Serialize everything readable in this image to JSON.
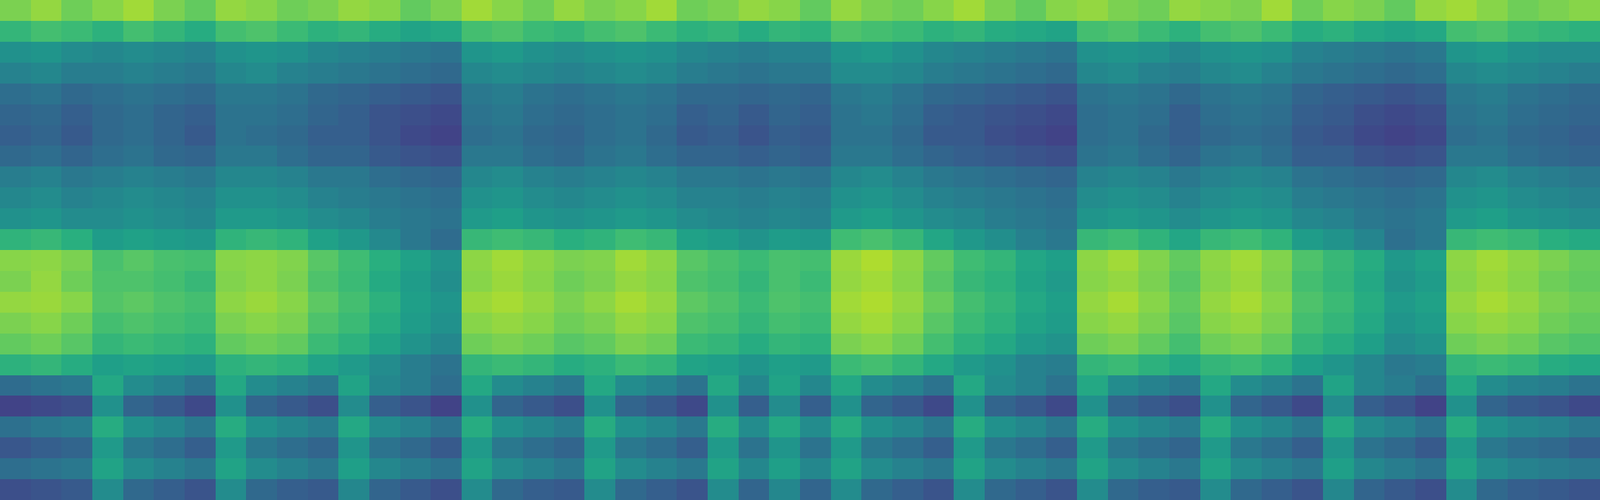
{
  "chart_data": {
    "type": "heatmap",
    "color": "Viridis",
    "tick_labels": false,
    "zlim": [
      0,
      1
    ],
    "cells": [
      [
        0.8,
        0.84,
        0.78,
        0.82,
        0.86,
        0.8,
        0.76,
        0.84,
        0.82,
        0.78,
        0.8,
        0.84,
        0.82,
        0.76,
        0.8,
        0.86,
        0.82,
        0.78,
        0.84,
        0.8,
        0.82,
        0.86,
        0.78,
        0.8,
        0.84,
        0.82,
        0.76,
        0.84,
        0.8,
        0.78,
        0.82,
        0.86,
        0.8,
        0.76,
        0.82,
        0.84,
        0.8,
        0.78,
        0.84,
        0.82,
        0.8,
        0.86,
        0.78,
        0.82,
        0.8,
        0.76,
        0.84,
        0.86,
        0.82,
        0.78,
        0.8,
        0.82
      ],
      [
        0.66,
        0.7,
        0.68,
        0.64,
        0.7,
        0.66,
        0.62,
        0.7,
        0.72,
        0.68,
        0.64,
        0.66,
        0.62,
        0.58,
        0.6,
        0.7,
        0.72,
        0.68,
        0.66,
        0.7,
        0.72,
        0.68,
        0.64,
        0.66,
        0.62,
        0.66,
        0.64,
        0.72,
        0.7,
        0.68,
        0.64,
        0.66,
        0.62,
        0.6,
        0.58,
        0.7,
        0.72,
        0.68,
        0.64,
        0.7,
        0.72,
        0.68,
        0.62,
        0.64,
        0.6,
        0.58,
        0.6,
        0.7,
        0.72,
        0.68,
        0.66,
        0.64
      ],
      [
        0.5,
        0.52,
        0.48,
        0.46,
        0.48,
        0.46,
        0.44,
        0.5,
        0.52,
        0.5,
        0.46,
        0.44,
        0.42,
        0.4,
        0.38,
        0.52,
        0.54,
        0.5,
        0.48,
        0.5,
        0.52,
        0.5,
        0.46,
        0.44,
        0.42,
        0.44,
        0.44,
        0.52,
        0.54,
        0.5,
        0.46,
        0.44,
        0.42,
        0.4,
        0.38,
        0.5,
        0.52,
        0.5,
        0.46,
        0.5,
        0.52,
        0.5,
        0.44,
        0.42,
        0.4,
        0.38,
        0.4,
        0.52,
        0.54,
        0.5,
        0.48,
        0.48
      ],
      [
        0.44,
        0.46,
        0.42,
        0.42,
        0.44,
        0.42,
        0.4,
        0.46,
        0.48,
        0.44,
        0.42,
        0.4,
        0.38,
        0.36,
        0.34,
        0.46,
        0.48,
        0.46,
        0.44,
        0.46,
        0.48,
        0.46,
        0.42,
        0.4,
        0.38,
        0.4,
        0.4,
        0.48,
        0.48,
        0.46,
        0.42,
        0.4,
        0.38,
        0.36,
        0.34,
        0.46,
        0.48,
        0.44,
        0.42,
        0.46,
        0.48,
        0.44,
        0.4,
        0.38,
        0.36,
        0.34,
        0.36,
        0.46,
        0.48,
        0.46,
        0.44,
        0.42
      ],
      [
        0.36,
        0.38,
        0.34,
        0.36,
        0.38,
        0.36,
        0.34,
        0.4,
        0.4,
        0.38,
        0.34,
        0.32,
        0.3,
        0.28,
        0.26,
        0.4,
        0.42,
        0.38,
        0.36,
        0.38,
        0.4,
        0.38,
        0.34,
        0.34,
        0.32,
        0.34,
        0.32,
        0.4,
        0.42,
        0.38,
        0.34,
        0.32,
        0.3,
        0.28,
        0.26,
        0.38,
        0.4,
        0.38,
        0.34,
        0.38,
        0.4,
        0.38,
        0.32,
        0.3,
        0.28,
        0.26,
        0.28,
        0.4,
        0.42,
        0.38,
        0.36,
        0.34
      ],
      [
        0.32,
        0.34,
        0.3,
        0.34,
        0.36,
        0.32,
        0.3,
        0.38,
        0.38,
        0.36,
        0.32,
        0.3,
        0.26,
        0.24,
        0.22,
        0.38,
        0.4,
        0.36,
        0.34,
        0.36,
        0.38,
        0.36,
        0.3,
        0.32,
        0.28,
        0.32,
        0.3,
        0.38,
        0.4,
        0.36,
        0.3,
        0.28,
        0.26,
        0.24,
        0.22,
        0.36,
        0.38,
        0.36,
        0.3,
        0.36,
        0.38,
        0.36,
        0.3,
        0.28,
        0.24,
        0.22,
        0.24,
        0.38,
        0.4,
        0.36,
        0.34,
        0.32
      ],
      [
        0.3,
        0.32,
        0.28,
        0.34,
        0.36,
        0.32,
        0.28,
        0.38,
        0.36,
        0.34,
        0.3,
        0.3,
        0.26,
        0.22,
        0.2,
        0.36,
        0.38,
        0.34,
        0.32,
        0.36,
        0.38,
        0.34,
        0.28,
        0.3,
        0.26,
        0.3,
        0.28,
        0.38,
        0.38,
        0.34,
        0.28,
        0.28,
        0.24,
        0.22,
        0.2,
        0.36,
        0.38,
        0.34,
        0.3,
        0.34,
        0.36,
        0.34,
        0.28,
        0.26,
        0.22,
        0.2,
        0.22,
        0.36,
        0.38,
        0.34,
        0.32,
        0.3
      ],
      [
        0.34,
        0.36,
        0.32,
        0.36,
        0.38,
        0.34,
        0.32,
        0.4,
        0.4,
        0.36,
        0.32,
        0.32,
        0.28,
        0.26,
        0.24,
        0.4,
        0.4,
        0.36,
        0.34,
        0.38,
        0.4,
        0.36,
        0.32,
        0.32,
        0.3,
        0.32,
        0.3,
        0.4,
        0.4,
        0.36,
        0.32,
        0.3,
        0.28,
        0.26,
        0.24,
        0.38,
        0.4,
        0.36,
        0.32,
        0.38,
        0.4,
        0.36,
        0.3,
        0.3,
        0.26,
        0.24,
        0.26,
        0.4,
        0.4,
        0.36,
        0.34,
        0.32
      ],
      [
        0.42,
        0.44,
        0.4,
        0.42,
        0.44,
        0.42,
        0.4,
        0.46,
        0.46,
        0.44,
        0.4,
        0.4,
        0.36,
        0.34,
        0.32,
        0.46,
        0.48,
        0.44,
        0.42,
        0.44,
        0.46,
        0.44,
        0.4,
        0.4,
        0.38,
        0.4,
        0.38,
        0.46,
        0.48,
        0.44,
        0.4,
        0.38,
        0.36,
        0.34,
        0.32,
        0.44,
        0.46,
        0.44,
        0.4,
        0.44,
        0.46,
        0.44,
        0.38,
        0.36,
        0.34,
        0.32,
        0.34,
        0.46,
        0.48,
        0.44,
        0.42,
        0.4
      ],
      [
        0.46,
        0.48,
        0.44,
        0.46,
        0.48,
        0.46,
        0.44,
        0.5,
        0.5,
        0.48,
        0.44,
        0.42,
        0.4,
        0.38,
        0.36,
        0.5,
        0.52,
        0.48,
        0.46,
        0.48,
        0.5,
        0.48,
        0.44,
        0.44,
        0.42,
        0.44,
        0.42,
        0.5,
        0.52,
        0.48,
        0.44,
        0.42,
        0.4,
        0.38,
        0.36,
        0.48,
        0.5,
        0.48,
        0.44,
        0.48,
        0.5,
        0.48,
        0.42,
        0.4,
        0.38,
        0.36,
        0.38,
        0.5,
        0.52,
        0.48,
        0.46,
        0.44
      ],
      [
        0.5,
        0.52,
        0.48,
        0.48,
        0.5,
        0.48,
        0.46,
        0.54,
        0.54,
        0.52,
        0.48,
        0.46,
        0.42,
        0.4,
        0.38,
        0.54,
        0.56,
        0.52,
        0.5,
        0.52,
        0.54,
        0.52,
        0.48,
        0.46,
        0.44,
        0.46,
        0.44,
        0.54,
        0.56,
        0.52,
        0.48,
        0.46,
        0.42,
        0.4,
        0.38,
        0.52,
        0.54,
        0.52,
        0.48,
        0.52,
        0.54,
        0.52,
        0.46,
        0.44,
        0.4,
        0.38,
        0.4,
        0.54,
        0.56,
        0.52,
        0.5,
        0.48
      ],
      [
        0.65,
        0.67,
        0.63,
        0.55,
        0.57,
        0.55,
        0.53,
        0.65,
        0.67,
        0.65,
        0.57,
        0.53,
        0.47,
        0.4,
        0.35,
        0.67,
        0.69,
        0.67,
        0.63,
        0.65,
        0.69,
        0.67,
        0.57,
        0.55,
        0.51,
        0.55,
        0.53,
        0.69,
        0.71,
        0.67,
        0.59,
        0.53,
        0.49,
        0.43,
        0.4,
        0.67,
        0.69,
        0.65,
        0.59,
        0.67,
        0.69,
        0.65,
        0.55,
        0.51,
        0.45,
        0.37,
        0.4,
        0.67,
        0.69,
        0.67,
        0.63,
        0.61
      ],
      [
        0.82,
        0.83,
        0.8,
        0.71,
        0.74,
        0.71,
        0.7,
        0.82,
        0.83,
        0.81,
        0.74,
        0.69,
        0.63,
        0.57,
        0.51,
        0.83,
        0.86,
        0.83,
        0.8,
        0.81,
        0.86,
        0.83,
        0.74,
        0.71,
        0.68,
        0.71,
        0.7,
        0.85,
        0.88,
        0.83,
        0.76,
        0.69,
        0.66,
        0.59,
        0.56,
        0.83,
        0.86,
        0.81,
        0.76,
        0.83,
        0.86,
        0.81,
        0.72,
        0.67,
        0.62,
        0.53,
        0.57,
        0.83,
        0.86,
        0.83,
        0.8,
        0.77
      ],
      [
        0.8,
        0.84,
        0.78,
        0.72,
        0.72,
        0.7,
        0.67,
        0.81,
        0.83,
        0.8,
        0.72,
        0.68,
        0.61,
        0.55,
        0.49,
        0.82,
        0.85,
        0.82,
        0.78,
        0.8,
        0.84,
        0.82,
        0.72,
        0.7,
        0.66,
        0.71,
        0.68,
        0.84,
        0.86,
        0.82,
        0.74,
        0.67,
        0.64,
        0.58,
        0.54,
        0.82,
        0.84,
        0.8,
        0.74,
        0.82,
        0.85,
        0.8,
        0.7,
        0.66,
        0.6,
        0.51,
        0.55,
        0.82,
        0.85,
        0.82,
        0.78,
        0.76
      ],
      [
        0.84,
        0.85,
        0.82,
        0.73,
        0.75,
        0.72,
        0.7,
        0.83,
        0.85,
        0.82,
        0.75,
        0.7,
        0.64,
        0.56,
        0.52,
        0.85,
        0.87,
        0.84,
        0.8,
        0.83,
        0.87,
        0.84,
        0.75,
        0.72,
        0.68,
        0.72,
        0.7,
        0.86,
        0.88,
        0.84,
        0.77,
        0.7,
        0.66,
        0.6,
        0.56,
        0.84,
        0.87,
        0.82,
        0.76,
        0.84,
        0.87,
        0.82,
        0.72,
        0.68,
        0.62,
        0.54,
        0.57,
        0.84,
        0.87,
        0.84,
        0.8,
        0.78
      ],
      [
        0.8,
        0.82,
        0.78,
        0.7,
        0.72,
        0.7,
        0.68,
        0.8,
        0.82,
        0.8,
        0.72,
        0.68,
        0.62,
        0.55,
        0.5,
        0.82,
        0.84,
        0.82,
        0.78,
        0.8,
        0.84,
        0.82,
        0.72,
        0.7,
        0.66,
        0.7,
        0.68,
        0.84,
        0.86,
        0.82,
        0.74,
        0.68,
        0.64,
        0.58,
        0.55,
        0.82,
        0.84,
        0.8,
        0.74,
        0.82,
        0.84,
        0.8,
        0.7,
        0.66,
        0.6,
        0.52,
        0.55,
        0.82,
        0.84,
        0.82,
        0.78,
        0.76
      ],
      [
        0.76,
        0.78,
        0.74,
        0.66,
        0.68,
        0.66,
        0.64,
        0.76,
        0.78,
        0.76,
        0.68,
        0.64,
        0.58,
        0.51,
        0.46,
        0.78,
        0.8,
        0.78,
        0.74,
        0.76,
        0.8,
        0.78,
        0.68,
        0.66,
        0.62,
        0.66,
        0.64,
        0.8,
        0.82,
        0.78,
        0.7,
        0.64,
        0.6,
        0.54,
        0.51,
        0.78,
        0.8,
        0.76,
        0.7,
        0.78,
        0.8,
        0.76,
        0.66,
        0.62,
        0.56,
        0.48,
        0.51,
        0.78,
        0.8,
        0.78,
        0.74,
        0.72
      ],
      [
        0.64,
        0.66,
        0.62,
        0.56,
        0.58,
        0.56,
        0.54,
        0.64,
        0.66,
        0.64,
        0.58,
        0.54,
        0.48,
        0.42,
        0.38,
        0.66,
        0.68,
        0.66,
        0.62,
        0.64,
        0.68,
        0.66,
        0.58,
        0.56,
        0.52,
        0.56,
        0.54,
        0.68,
        0.7,
        0.66,
        0.6,
        0.54,
        0.5,
        0.44,
        0.42,
        0.66,
        0.68,
        0.64,
        0.6,
        0.66,
        0.68,
        0.64,
        0.56,
        0.52,
        0.46,
        0.4,
        0.42,
        0.66,
        0.68,
        0.66,
        0.62,
        0.6
      ],
      [
        0.35,
        0.38,
        0.4,
        0.6,
        0.48,
        0.44,
        0.38,
        0.6,
        0.48,
        0.44,
        0.4,
        0.58,
        0.46,
        0.42,
        0.36,
        0.6,
        0.48,
        0.44,
        0.4,
        0.6,
        0.48,
        0.44,
        0.38,
        0.6,
        0.46,
        0.58,
        0.46,
        0.6,
        0.48,
        0.44,
        0.38,
        0.6,
        0.48,
        0.44,
        0.38,
        0.6,
        0.48,
        0.44,
        0.4,
        0.6,
        0.48,
        0.44,
        0.38,
        0.58,
        0.46,
        0.42,
        0.36,
        0.6,
        0.48,
        0.44,
        0.42,
        0.38
      ],
      [
        0.2,
        0.22,
        0.24,
        0.5,
        0.32,
        0.28,
        0.22,
        0.5,
        0.32,
        0.28,
        0.24,
        0.48,
        0.3,
        0.26,
        0.2,
        0.5,
        0.32,
        0.28,
        0.24,
        0.5,
        0.32,
        0.28,
        0.22,
        0.5,
        0.3,
        0.48,
        0.3,
        0.5,
        0.32,
        0.28,
        0.22,
        0.5,
        0.32,
        0.28,
        0.22,
        0.5,
        0.32,
        0.28,
        0.24,
        0.5,
        0.32,
        0.28,
        0.22,
        0.48,
        0.3,
        0.26,
        0.2,
        0.5,
        0.32,
        0.28,
        0.26,
        0.22
      ],
      [
        0.37,
        0.4,
        0.42,
        0.62,
        0.5,
        0.46,
        0.4,
        0.62,
        0.5,
        0.46,
        0.42,
        0.6,
        0.48,
        0.44,
        0.38,
        0.62,
        0.5,
        0.46,
        0.42,
        0.62,
        0.5,
        0.46,
        0.4,
        0.62,
        0.48,
        0.6,
        0.48,
        0.62,
        0.5,
        0.46,
        0.4,
        0.62,
        0.5,
        0.46,
        0.4,
        0.62,
        0.5,
        0.46,
        0.42,
        0.62,
        0.5,
        0.46,
        0.4,
        0.6,
        0.48,
        0.44,
        0.38,
        0.62,
        0.5,
        0.46,
        0.44,
        0.4
      ],
      [
        0.27,
        0.3,
        0.32,
        0.54,
        0.4,
        0.36,
        0.3,
        0.54,
        0.4,
        0.36,
        0.32,
        0.52,
        0.38,
        0.34,
        0.28,
        0.54,
        0.4,
        0.36,
        0.32,
        0.54,
        0.4,
        0.36,
        0.3,
        0.54,
        0.38,
        0.52,
        0.38,
        0.54,
        0.4,
        0.36,
        0.3,
        0.54,
        0.4,
        0.36,
        0.3,
        0.54,
        0.4,
        0.36,
        0.32,
        0.54,
        0.4,
        0.36,
        0.3,
        0.52,
        0.38,
        0.34,
        0.28,
        0.54,
        0.4,
        0.36,
        0.34,
        0.3
      ],
      [
        0.36,
        0.38,
        0.4,
        0.58,
        0.48,
        0.44,
        0.4,
        0.58,
        0.48,
        0.44,
        0.4,
        0.56,
        0.46,
        0.42,
        0.38,
        0.58,
        0.48,
        0.44,
        0.4,
        0.58,
        0.48,
        0.44,
        0.4,
        0.58,
        0.46,
        0.56,
        0.46,
        0.58,
        0.48,
        0.44,
        0.4,
        0.58,
        0.48,
        0.44,
        0.4,
        0.58,
        0.48,
        0.44,
        0.4,
        0.58,
        0.48,
        0.44,
        0.4,
        0.56,
        0.46,
        0.42,
        0.38,
        0.58,
        0.48,
        0.44,
        0.42,
        0.4
      ],
      [
        0.24,
        0.26,
        0.28,
        0.48,
        0.34,
        0.3,
        0.26,
        0.48,
        0.34,
        0.3,
        0.28,
        0.46,
        0.32,
        0.28,
        0.24,
        0.48,
        0.34,
        0.3,
        0.28,
        0.48,
        0.34,
        0.3,
        0.26,
        0.48,
        0.32,
        0.46,
        0.32,
        0.48,
        0.34,
        0.3,
        0.26,
        0.48,
        0.34,
        0.3,
        0.26,
        0.48,
        0.34,
        0.3,
        0.28,
        0.48,
        0.34,
        0.3,
        0.26,
        0.46,
        0.32,
        0.28,
        0.24,
        0.48,
        0.34,
        0.3,
        0.28,
        0.26
      ]
    ]
  }
}
